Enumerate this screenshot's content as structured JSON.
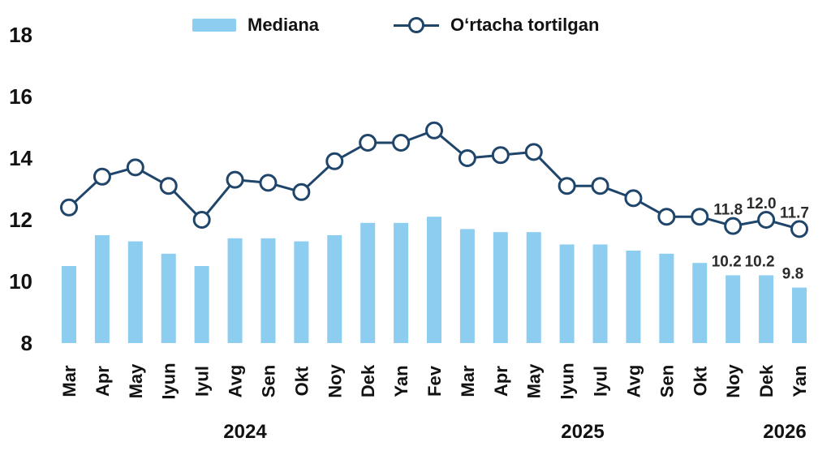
{
  "legend": {
    "median_label": "Mediana",
    "weighted_label": "O‘rtacha tortilgan"
  },
  "colors": {
    "bar": "#8dcdf0",
    "line": "#1f456a",
    "marker_fill": "#ffffff",
    "text": "#121212",
    "annotation_text": "#2b2b2b",
    "background": "#ffffff"
  },
  "chart_data": {
    "type": "bar",
    "subtype": "bar-plus-line-combo",
    "title": "",
    "xlabel": "",
    "ylabel": "",
    "ylim": [
      8,
      18
    ],
    "yticks": [
      8,
      10,
      12,
      14,
      16,
      18
    ],
    "grid": false,
    "legend_position": "top",
    "categories": [
      "Mar",
      "Apr",
      "May",
      "Iyun",
      "Iyul",
      "Avg",
      "Sen",
      "Okt",
      "Noy",
      "Dek",
      "Yan",
      "Fev",
      "Mar",
      "Apr",
      "May",
      "Iyun",
      "Iyul",
      "Avg",
      "Sen",
      "Okt",
      "Noy",
      "Dek",
      "Yan"
    ],
    "year_labels": [
      "2024",
      "2025",
      "2026"
    ],
    "series": [
      {
        "name": "Mediana",
        "type": "bar",
        "values": [
          10.5,
          11.5,
          11.3,
          10.9,
          10.5,
          11.4,
          11.4,
          11.3,
          11.5,
          11.9,
          11.9,
          12.1,
          11.7,
          11.6,
          11.6,
          11.2,
          11.2,
          11.0,
          10.9,
          10.6,
          10.2,
          10.2,
          9.8
        ]
      },
      {
        "name": "O‘rtacha tortilgan",
        "type": "line",
        "values": [
          12.4,
          13.4,
          13.7,
          13.1,
          12.0,
          13.3,
          13.2,
          12.9,
          13.9,
          14.5,
          14.5,
          14.9,
          14.0,
          14.1,
          14.2,
          13.1,
          13.1,
          12.7,
          12.1,
          12.1,
          11.8,
          12.0,
          11.7
        ]
      }
    ],
    "annotations": {
      "line": [
        {
          "index": 20,
          "text": "11.8"
        },
        {
          "index": 21,
          "text": "12.0"
        },
        {
          "index": 22,
          "text": "11.7"
        }
      ],
      "bar": [
        {
          "index": 20,
          "text": "10.2"
        },
        {
          "index": 21,
          "text": "10.2"
        },
        {
          "index": 22,
          "text": "9.8"
        }
      ]
    }
  }
}
